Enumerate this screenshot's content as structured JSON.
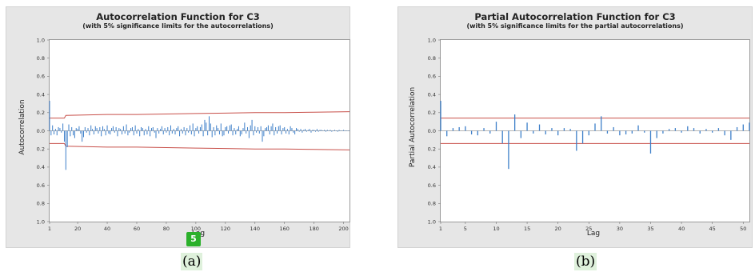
{
  "panels": {
    "a": {
      "title": "Autocorrelation Function for C3",
      "subtitle": "(with 5% significance limits for the autocorrelations)",
      "ylabel": "Autocorrelation",
      "xlabel": "Lag",
      "caption": "(a)",
      "badge": "5"
    },
    "b": {
      "title": "Partial Autocorrelation Function for C3",
      "subtitle": "(with 5% significance limits for the partial autocorrelations)",
      "ylabel": "Partial Autocorrelation",
      "xlabel": "Lag",
      "caption": "(b)"
    }
  },
  "colors": {
    "bars": "#3d7fc9",
    "limits": "#c8504a",
    "zero_line": "#9a9a9a"
  },
  "chart_data": [
    {
      "type": "bar",
      "title": "Autocorrelation Function for C3",
      "subtitle": "(with 5% significance limits for the autocorrelations)",
      "xlabel": "Lag",
      "ylabel": "Autocorrelation",
      "xlim": [
        1,
        204
      ],
      "ylim": [
        -1.0,
        1.0
      ],
      "x_ticks": [
        1,
        20,
        40,
        60,
        80,
        100,
        120,
        140,
        160,
        180,
        200
      ],
      "y_ticks": [
        1.0,
        0.8,
        0.6,
        0.4,
        0.2,
        0.0,
        -0.2,
        -0.4,
        -0.6,
        -0.8,
        -1.0
      ],
      "y_tick_labels": [
        "1.0",
        "0.8",
        "0.6",
        "0.4",
        "0.2",
        "0.0",
        "0.2",
        "0.4",
        "0.6",
        "0.8",
        "1.0"
      ],
      "lags": [
        1,
        2,
        3,
        4,
        5,
        6,
        7,
        8,
        9,
        10,
        11,
        12,
        13,
        14,
        15,
        16,
        17,
        18,
        19,
        20,
        21,
        22,
        23,
        24,
        25,
        26,
        27,
        28,
        29,
        30,
        31,
        32,
        33,
        34,
        35,
        36,
        37,
        38,
        39,
        40,
        41,
        42,
        43,
        44,
        45,
        46,
        47,
        48,
        49,
        50,
        51,
        52,
        53,
        54,
        55,
        56,
        57,
        58,
        59,
        60,
        61,
        62,
        63,
        64,
        65,
        66,
        67,
        68,
        69,
        70,
        71,
        72,
        73,
        74,
        75,
        76,
        77,
        78,
        79,
        80,
        81,
        82,
        83,
        84,
        85,
        86,
        87,
        88,
        89,
        90,
        91,
        92,
        93,
        94,
        95,
        96,
        97,
        98,
        99,
        100,
        101,
        102,
        103,
        104,
        105,
        106,
        107,
        108,
        109,
        110,
        111,
        112,
        113,
        114,
        115,
        116,
        117,
        118,
        119,
        120,
        121,
        122,
        123,
        124,
        125,
        126,
        127,
        128,
        129,
        130,
        131,
        132,
        133,
        134,
        135,
        136,
        137,
        138,
        139,
        140,
        141,
        142,
        143,
        144,
        145,
        146,
        147,
        148,
        149,
        150,
        151,
        152,
        153,
        154,
        155,
        156,
        157,
        158,
        159,
        160,
        161,
        162,
        163,
        164,
        165,
        166,
        167,
        168,
        169,
        170,
        171,
        172,
        173,
        174,
        175,
        176,
        177,
        178,
        179,
        180,
        181,
        182,
        183,
        184,
        185,
        186,
        187,
        188,
        189,
        190,
        191,
        192,
        193,
        194,
        195,
        196,
        197,
        198,
        199,
        200,
        201,
        202,
        203,
        204
      ],
      "values": [
        0.33,
        -0.05,
        0.06,
        -0.04,
        0.02,
        -0.05,
        0.04,
        0.03,
        -0.02,
        0.08,
        -0.12,
        -0.43,
        -0.18,
        0.07,
        -0.06,
        0.04,
        -0.05,
        -0.08,
        0.03,
        0.02,
        0.05,
        -0.03,
        -0.12,
        -0.07,
        0.04,
        -0.02,
        0.03,
        -0.05,
        0.06,
        0.02,
        -0.04,
        0.05,
        0.03,
        -0.03,
        0.04,
        -0.06,
        0.05,
        0.02,
        -0.05,
        0.06,
        -0.03,
        -0.04,
        0.03,
        0.05,
        -0.02,
        0.04,
        -0.06,
        0.03,
        0.02,
        -0.04,
        0.05,
        -0.03,
        0.07,
        -0.05,
        -0.02,
        0.03,
        0.04,
        -0.05,
        0.06,
        -0.03,
        0.02,
        -0.06,
        0.04,
        0.03,
        -0.05,
        0.02,
        -0.04,
        0.05,
        -0.06,
        0.03,
        0.04,
        -0.02,
        -0.08,
        0.03,
        -0.03,
        0.02,
        0.05,
        -0.04,
        0.03,
        -0.02,
        0.04,
        -0.05,
        0.06,
        -0.03,
        0.02,
        -0.04,
        0.03,
        0.05,
        -0.06,
        0.02,
        -0.03,
        0.04,
        -0.05,
        0.03,
        -0.02,
        0.06,
        -0.04,
        0.08,
        -0.06,
        0.03,
        0.05,
        -0.03,
        0.04,
        0.07,
        -0.06,
        0.12,
        0.09,
        -0.05,
        0.16,
        0.08,
        -0.07,
        0.04,
        -0.05,
        0.06,
        0.03,
        -0.04,
        0.08,
        -0.06,
        -0.05,
        0.04,
        0.05,
        -0.03,
        0.06,
        0.07,
        -0.05,
        0.03,
        -0.04,
        0.02,
        0.05,
        -0.06,
        -0.04,
        0.03,
        0.09,
        -0.03,
        0.04,
        -0.08,
        0.06,
        0.12,
        -0.05,
        0.05,
        -0.02,
        0.04,
        -0.03,
        0.05,
        -0.12,
        -0.06,
        0.03,
        0.04,
        0.06,
        -0.04,
        0.05,
        0.08,
        -0.05,
        0.04,
        -0.03,
        0.05,
        0.06,
        -0.04,
        0.03,
        0.04,
        -0.03,
        0.02,
        -0.04,
        0.05,
        0.03,
        -0.02,
        -0.04,
        0.03,
        0.02,
        -0.01,
        0.02,
        -0.02,
        0.01,
        0.02,
        -0.01,
        0.01,
        0.02,
        -0.02,
        0.01,
        0.01,
        -0.01,
        0.02,
        -0.01,
        0.01,
        0.01,
        0.0,
        0.01,
        -0.01,
        0.01,
        0.0,
        0.01,
        -0.01,
        0.0,
        0.01,
        0.0,
        -0.01,
        0.01,
        0.0,
        0.0,
        0.01,
        0.0,
        0.0,
        0.0,
        0.0,
        0.0,
        0.0,
        0.0
      ],
      "significance_limits": {
        "lags": [
          1,
          11,
          12,
          40,
          60,
          80,
          100,
          120,
          140,
          160,
          180,
          204
        ],
        "upper": [
          0.14,
          0.14,
          0.17,
          0.18,
          0.18,
          0.185,
          0.19,
          0.195,
          0.2,
          0.2,
          0.205,
          0.21
        ],
        "lower": [
          -0.14,
          -0.14,
          -0.17,
          -0.18,
          -0.18,
          -0.185,
          -0.19,
          -0.195,
          -0.2,
          -0.2,
          -0.205,
          -0.21
        ]
      }
    },
    {
      "type": "bar",
      "title": "Partial Autocorrelation Function for C3",
      "subtitle": "(with 5% significance limits for the partial autocorrelations)",
      "xlabel": "Lag",
      "ylabel": "Partial Autocorrelation",
      "xlim": [
        1,
        51
      ],
      "ylim": [
        -1.0,
        1.0
      ],
      "x_ticks": [
        1,
        5,
        10,
        15,
        20,
        25,
        30,
        35,
        40,
        45,
        50
      ],
      "y_ticks": [
        1.0,
        0.8,
        0.6,
        0.4,
        0.2,
        0.0,
        -0.2,
        -0.4,
        -0.6,
        -0.8,
        -1.0
      ],
      "y_tick_labels": [
        "1.0",
        "0.8",
        "0.6",
        "0.4",
        "0.2",
        "0.0",
        "0.2",
        "0.4",
        "0.6",
        "0.8",
        "1.0"
      ],
      "lags": [
        1,
        2,
        3,
        4,
        5,
        6,
        7,
        8,
        9,
        10,
        11,
        12,
        13,
        14,
        15,
        16,
        17,
        18,
        19,
        20,
        21,
        22,
        23,
        24,
        25,
        26,
        27,
        28,
        29,
        30,
        31,
        32,
        33,
        34,
        35,
        36,
        37,
        38,
        39,
        40,
        41,
        42,
        43,
        44,
        45,
        46,
        47,
        48,
        49,
        50,
        51
      ],
      "values": [
        0.33,
        -0.06,
        0.03,
        0.04,
        0.05,
        -0.04,
        -0.05,
        0.03,
        -0.03,
        0.1,
        -0.14,
        -0.42,
        0.18,
        -0.08,
        0.09,
        -0.03,
        0.07,
        -0.04,
        0.03,
        -0.05,
        0.03,
        0.02,
        -0.22,
        -0.14,
        -0.05,
        0.08,
        0.16,
        -0.03,
        0.04,
        -0.05,
        -0.04,
        -0.03,
        0.06,
        -0.02,
        -0.25,
        -0.08,
        -0.03,
        0.02,
        0.03,
        -0.02,
        0.05,
        0.03,
        -0.03,
        0.02,
        -0.02,
        0.03,
        -0.05,
        -0.1,
        0.04,
        0.07,
        0.09
      ],
      "significance_limits": {
        "upper": 0.14,
        "lower": -0.14
      }
    }
  ]
}
